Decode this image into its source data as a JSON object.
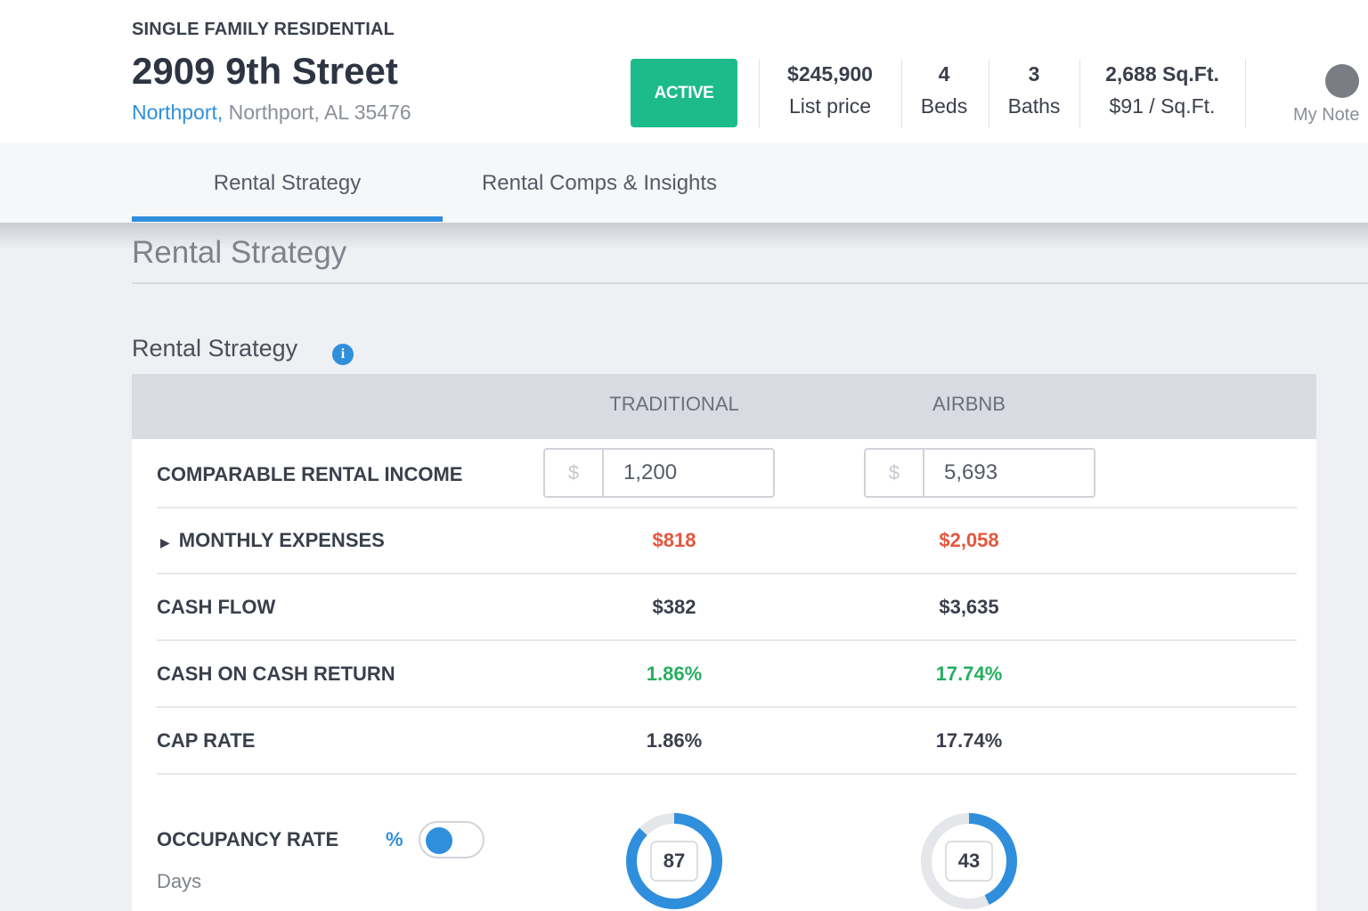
{
  "header": {
    "property_type": "SINGLE FAMILY RESIDENTIAL",
    "address": "2909 9th Street",
    "city_link": "Northport,",
    "location": "Northport, AL 35476",
    "status": "ACTIVE",
    "stats": [
      {
        "value": "$245,900",
        "label": "List price"
      },
      {
        "value": "4",
        "label": "Beds"
      },
      {
        "value": "3",
        "label": "Baths"
      },
      {
        "value": "2,688 Sq.Ft.",
        "label": "$91 / Sq.Ft."
      }
    ],
    "notes_label": "My Note"
  },
  "tabs": [
    "Rental Strategy",
    "Rental Comps & Insights"
  ],
  "page_title": "Rental Strategy",
  "section": {
    "title": "Rental Strategy",
    "columns": [
      "TRADITIONAL",
      "AIRBNB"
    ],
    "income": {
      "label": "COMPARABLE RENTAL INCOME",
      "currency": "$",
      "values": [
        "1,200",
        "5,693"
      ]
    },
    "rows": [
      {
        "label": "MONTHLY EXPENSES",
        "values": [
          "$818",
          "$2,058"
        ],
        "color": "#e8553e",
        "expandable": true
      },
      {
        "label": "CASH FLOW",
        "values": [
          "$382",
          "$3,635"
        ],
        "color": "#3a3f4b"
      },
      {
        "label": "CASH ON CASH RETURN",
        "values": [
          "1.86%",
          "17.74%"
        ],
        "color": "#27ae60"
      },
      {
        "label": "CAP RATE",
        "values": [
          "1.86%",
          "17.74%"
        ],
        "color": "#3a3f4b"
      }
    ],
    "occupancy": {
      "label": "OCCUPANCY RATE",
      "unit_toggle": "%",
      "sub_label": "Days",
      "values": [
        87,
        43
      ],
      "range": [
        0,
        100
      ],
      "color": "#2f8fdd"
    }
  }
}
